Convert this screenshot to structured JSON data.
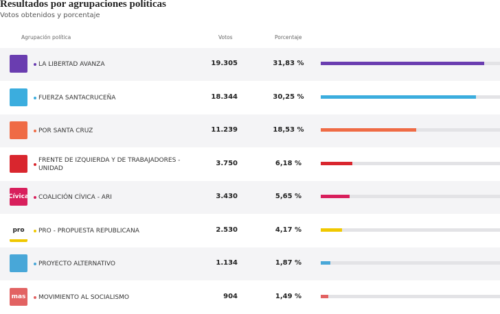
{
  "header": {
    "title": "Resultados por agrupaciones políticas",
    "subtitle": "Votos obtenidos y porcentaje"
  },
  "table": {
    "columns": [
      "Agrupación política",
      "Votos",
      "Porcentaje"
    ],
    "rows": [
      {
        "name": "LA LIBERTAD AVANZA",
        "votes": "19.305",
        "percent": 31.83,
        "percent_label": "31,83 %",
        "color": "#6a3db0"
      },
      {
        "name": "FUERZA SANTACRUCEÑA",
        "votes": "18.344",
        "percent": 30.25,
        "percent_label": "30,25 %",
        "color": "#3badde"
      },
      {
        "name": "POR SANTA CRUZ",
        "votes": "11.239",
        "percent": 18.53,
        "percent_label": "18,53 %",
        "color": "#ef6b45"
      },
      {
        "name": "FRENTE DE IZQUIERDA Y DE TRABAJADORES - UNIDAD",
        "votes": "3.750",
        "percent": 6.18,
        "percent_label": "6,18 %",
        "color": "#d9262e"
      },
      {
        "name": "COALICIÓN CÍVICA - ARI",
        "votes": "3.430",
        "percent": 5.65,
        "percent_label": "5,65 %",
        "color": "#d81f5c",
        "logo_text": "Cívica"
      },
      {
        "name": "PRO - PROPUESTA REPUBLICANA",
        "votes": "2.530",
        "percent": 4.17,
        "percent_label": "4,17 %",
        "color": "#f0c800",
        "logo_text": "pro"
      },
      {
        "name": "PROYECTO ALTERNATIVO",
        "votes": "1.134",
        "percent": 1.87,
        "percent_label": "1,87 %",
        "color": "#48a7d8"
      },
      {
        "name": "MOVIMIENTO AL SOCIALISMO",
        "votes": "904",
        "percent": 1.49,
        "percent_label": "1,49 %",
        "color": "#e26262",
        "logo_text": "mas"
      }
    ]
  }
}
